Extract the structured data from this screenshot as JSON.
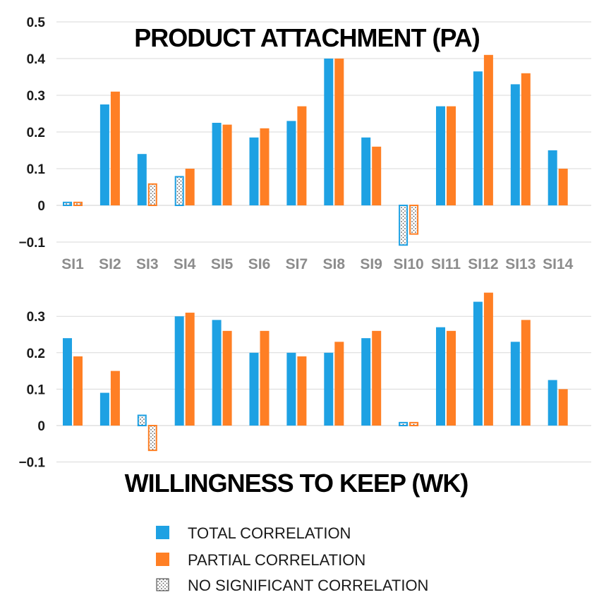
{
  "colors": {
    "total": "#1ea1e3",
    "partial": "#ff7f24",
    "dots": "#555555"
  },
  "legend": {
    "items": [
      {
        "label": "TOTAL CORRELATION",
        "key": "total",
        "style": "solid"
      },
      {
        "label": "PARTIAL CORRELATION",
        "key": "partial",
        "style": "solid"
      },
      {
        "label": "NO SIGNIFICANT CORRELATION",
        "key": "nonsig",
        "style": "dotted"
      }
    ]
  },
  "chart_data": [
    {
      "type": "bar",
      "title": "PRODUCT ATTACHMENT (PA)",
      "categories": [
        "SI1",
        "SI2",
        "SI3",
        "SI4",
        "SI5",
        "SI6",
        "SI7",
        "SI8",
        "SI9",
        "SI10",
        "SI11",
        "SI12",
        "SI13",
        "SI14"
      ],
      "ylim": [
        -0.1,
        0.5
      ],
      "yticks": [
        "0.5",
        "0.4",
        "0.3",
        "0.2",
        "0.1",
        "0",
        "−0.1"
      ],
      "grid": true,
      "series": [
        {
          "name": "TOTAL CORRELATION",
          "values": [
            0.01,
            0.275,
            0.14,
            0.08,
            0.225,
            0.185,
            0.23,
            0.4,
            0.185,
            -0.11,
            0.27,
            0.365,
            0.33,
            0.15
          ],
          "nonsignificant": [
            true,
            false,
            false,
            true,
            false,
            false,
            false,
            false,
            false,
            true,
            false,
            false,
            false,
            false
          ]
        },
        {
          "name": "PARTIAL CORRELATION",
          "values": [
            0.01,
            0.31,
            0.06,
            0.1,
            0.22,
            0.21,
            0.27,
            0.4,
            0.16,
            -0.08,
            0.27,
            0.41,
            0.36,
            0.1
          ],
          "nonsignificant": [
            true,
            false,
            true,
            false,
            false,
            false,
            false,
            false,
            false,
            true,
            false,
            false,
            false,
            false
          ]
        }
      ]
    },
    {
      "type": "bar",
      "title": "WILLINGNESS TO KEEP (WK)",
      "categories": [
        "SI1",
        "SI2",
        "SI3",
        "SI4",
        "SI5",
        "SI6",
        "SI7",
        "SI8",
        "SI9",
        "SI10",
        "SI11",
        "SI12",
        "SI13",
        "SI14"
      ],
      "ylim": [
        -0.1,
        0.35
      ],
      "yticks": [
        "0.3",
        "0.2",
        "0.1",
        "0",
        "−0.1"
      ],
      "grid": true,
      "series": [
        {
          "name": "TOTAL CORRELATION",
          "values": [
            0.24,
            0.09,
            0.03,
            0.3,
            0.29,
            0.2,
            0.2,
            0.2,
            0.24,
            0.01,
            0.27,
            0.34,
            0.23,
            0.125
          ],
          "nonsignificant": [
            false,
            false,
            true,
            false,
            false,
            false,
            false,
            false,
            false,
            true,
            false,
            false,
            false,
            false
          ]
        },
        {
          "name": "PARTIAL CORRELATION",
          "values": [
            0.19,
            0.15,
            -0.07,
            0.31,
            0.26,
            0.26,
            0.19,
            0.23,
            0.26,
            0.01,
            0.26,
            0.365,
            0.29,
            0.1
          ],
          "nonsignificant": [
            false,
            false,
            true,
            false,
            false,
            false,
            false,
            false,
            false,
            true,
            false,
            false,
            false,
            false
          ]
        }
      ]
    }
  ]
}
